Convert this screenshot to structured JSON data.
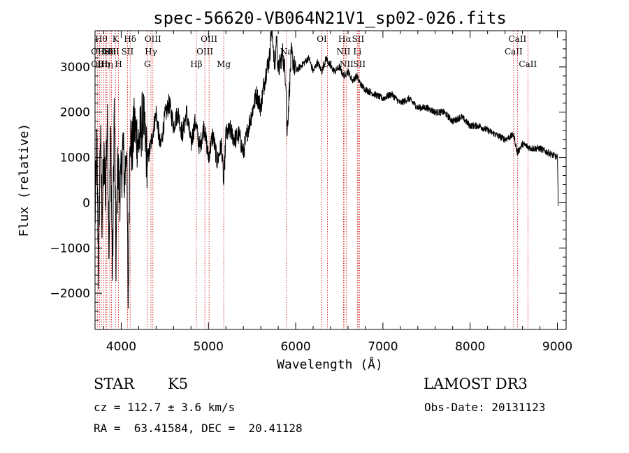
{
  "chart_data": {
    "type": "line",
    "title": "spec-56620-VB064N21V1_sp02-026.fits",
    "xlabel": "Wavelength (Å)",
    "ylabel": "Flux (relative)",
    "xlim": [
      3700,
      9100
    ],
    "ylim": [
      -2800,
      3800
    ],
    "x_ticks": [
      4000,
      5000,
      6000,
      7000,
      8000,
      9000
    ],
    "y_ticks": [
      -2000,
      -1000,
      0,
      1000,
      2000,
      3000
    ],
    "series": [
      {
        "name": "flux",
        "x": [
          3700,
          3720,
          3740,
          3760,
          3780,
          3800,
          3820,
          3840,
          3860,
          3880,
          3900,
          3920,
          3940,
          3960,
          3980,
          4000,
          4020,
          4040,
          4060,
          4080,
          4100,
          4120,
          4150,
          4200,
          4250,
          4300,
          4350,
          4400,
          4450,
          4500,
          4550,
          4600,
          4650,
          4700,
          4750,
          4800,
          4850,
          4900,
          4950,
          5000,
          5050,
          5100,
          5150,
          5175,
          5200,
          5250,
          5300,
          5350,
          5400,
          5450,
          5500,
          5550,
          5600,
          5650,
          5700,
          5720,
          5740,
          5760,
          5780,
          5800,
          5850,
          5890,
          5900,
          5950,
          6000,
          6050,
          6100,
          6150,
          6200,
          6250,
          6300,
          6350,
          6400,
          6450,
          6500,
          6550,
          6600,
          6650,
          6700,
          6750,
          6800,
          6900,
          7000,
          7100,
          7200,
          7300,
          7400,
          7500,
          7600,
          7700,
          7800,
          7900,
          8000,
          8100,
          8200,
          8300,
          8400,
          8500,
          8540,
          8600,
          8700,
          8800,
          8900,
          9000,
          9010
        ],
        "y": [
          -400,
          1300,
          -1500,
          1600,
          -300,
          900,
          300,
          1900,
          -900,
          1500,
          -1700,
          2100,
          -1300,
          900,
          200,
          500,
          1300,
          400,
          1400,
          -2300,
          1800,
          1100,
          1700,
          1300,
          1900,
          900,
          1400,
          2000,
          1200,
          1900,
          2200,
          1700,
          2000,
          1500,
          2000,
          1300,
          1800,
          1200,
          1700,
          1000,
          1500,
          900,
          1300,
          400,
          1500,
          1600,
          1400,
          1500,
          1100,
          1600,
          2000,
          2400,
          2100,
          2800,
          3200,
          3800,
          3600,
          2900,
          3700,
          2900,
          3300,
          2700,
          1500,
          3300,
          2900,
          3000,
          3100,
          3200,
          2900,
          3100,
          2900,
          3200,
          3000,
          2900,
          3000,
          2800,
          2900,
          2700,
          2800,
          2600,
          2500,
          2400,
          2300,
          2400,
          2200,
          2300,
          2100,
          2100,
          2000,
          2000,
          1800,
          1900,
          1700,
          1700,
          1600,
          1500,
          1400,
          1500,
          1100,
          1300,
          1200,
          1200,
          1100,
          1000,
          0
        ]
      }
    ],
    "lines": [
      {
        "wl": 3730,
        "label": "OII",
        "row": 1
      },
      {
        "wl": 3750,
        "label": "OIII",
        "row": 2
      },
      {
        "wl": 3771,
        "label": "Hθ",
        "row": 0
      },
      {
        "wl": 3798,
        "label": "Hη",
        "row": 2
      },
      {
        "wl": 3820,
        "label": "HeI",
        "row": 1
      },
      {
        "wl": 3835,
        "label": "Hη",
        "row": 2
      },
      {
        "wl": 3869,
        "label": "SII",
        "row": 1
      },
      {
        "wl": 3889,
        "label": "HeI",
        "row": 1
      },
      {
        "wl": 3934,
        "label": "K",
        "row": 0
      },
      {
        "wl": 3969,
        "label": "H",
        "row": 2
      },
      {
        "wl": 4072,
        "label": "SII",
        "row": 1
      },
      {
        "wl": 4102,
        "label": "Hδ",
        "row": 0
      },
      {
        "wl": 4300,
        "label": "G",
        "row": 2
      },
      {
        "wl": 4341,
        "label": "Hγ",
        "row": 1
      },
      {
        "wl": 4363,
        "label": "OIII",
        "row": 0
      },
      {
        "wl": 4861,
        "label": "Hβ",
        "row": 2
      },
      {
        "wl": 4959,
        "label": "OIII",
        "row": 1
      },
      {
        "wl": 5007,
        "label": "OIII",
        "row": 0
      },
      {
        "wl": 5175,
        "label": "Mg",
        "row": 2
      },
      {
        "wl": 5893,
        "label": "Na",
        "row": 1
      },
      {
        "wl": 6300,
        "label": "OI",
        "row": 0
      },
      {
        "wl": 6364,
        "label": "OI",
        "row": 2
      },
      {
        "wl": 6548,
        "label": "NII",
        "row": 1
      },
      {
        "wl": 6563,
        "label": "Hα",
        "row": 0
      },
      {
        "wl": 6583,
        "label": "NII",
        "row": 2
      },
      {
        "wl": 6707,
        "label": "Li",
        "row": 1
      },
      {
        "wl": 6716,
        "label": "SII",
        "row": 0
      },
      {
        "wl": 6731,
        "label": "SII",
        "row": 2
      },
      {
        "wl": 8498,
        "label": "CaII",
        "row": 1
      },
      {
        "wl": 8542,
        "label": "CaII",
        "row": 0
      },
      {
        "wl": 8662,
        "label": "CaII",
        "row": 2
      }
    ]
  },
  "info": {
    "class": "STAR",
    "subclass": "K5",
    "survey": "LAMOST DR3",
    "redshift": "cz = 112.7 ± 3.6 km/s",
    "obs_date": "Obs-Date: 20131123",
    "coords": "RA =  63.41584, DEC =  20.41128"
  }
}
